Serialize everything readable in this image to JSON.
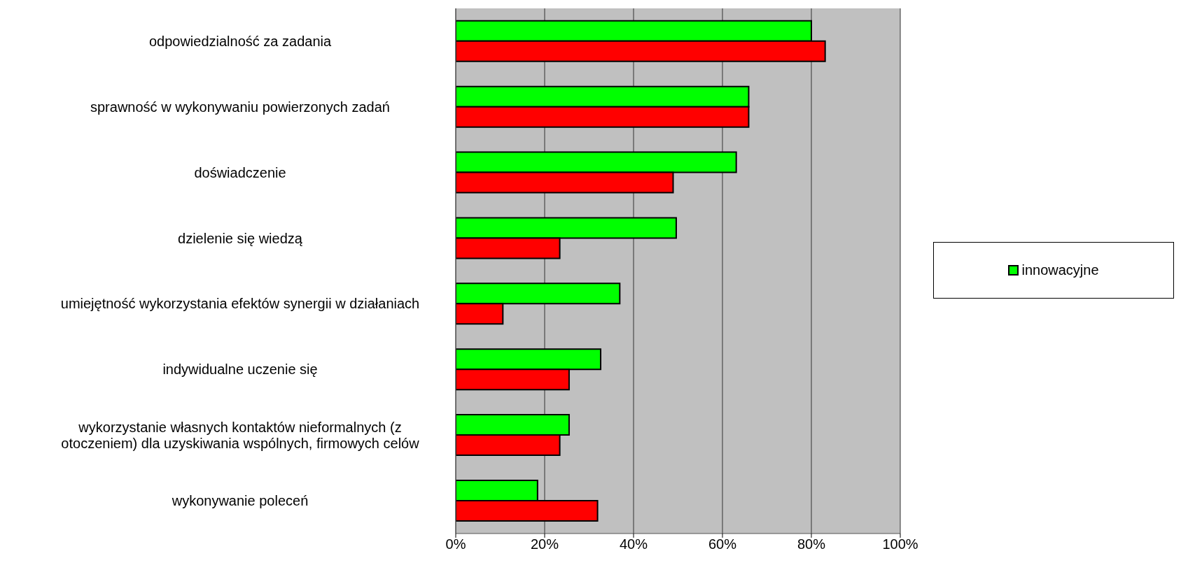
{
  "chart_data": {
    "type": "bar",
    "orientation": "horizontal",
    "categories": [
      "odpowiedzialność za zadania",
      "sprawność w wykonywaniu powierzonych zadań",
      "doświadczenie",
      "dzielenie się wiedzą",
      "umiejętność wykorzystania efektów synergii w działaniach",
      "indywidualne uczenie się",
      "wykorzystanie własnych kontaktów nieformalnych (z otoczeniem) dla uzyskiwania wspólnych, firmowych celów",
      "wykonywanie poleceń"
    ],
    "series": [
      {
        "name": "innowacyjne",
        "color": "#00ff00",
        "values": [
          80.0,
          65.9,
          63.1,
          49.6,
          36.9,
          32.6,
          25.5,
          18.4
        ]
      },
      {
        "color": "#ff0000",
        "values": [
          83.1,
          65.9,
          48.9,
          23.4,
          10.6,
          25.5,
          23.4,
          31.9
        ]
      }
    ],
    "xlim": [
      0,
      100
    ],
    "xticks": [
      {
        "value": 0,
        "label": "0%"
      },
      {
        "value": 20,
        "label": "20%"
      },
      {
        "value": 40,
        "label": "40%"
      },
      {
        "value": 60,
        "label": "60%"
      },
      {
        "value": 80,
        "label": "80%"
      },
      {
        "value": 100,
        "label": "100%"
      }
    ],
    "grid": "x",
    "legend": "right"
  }
}
